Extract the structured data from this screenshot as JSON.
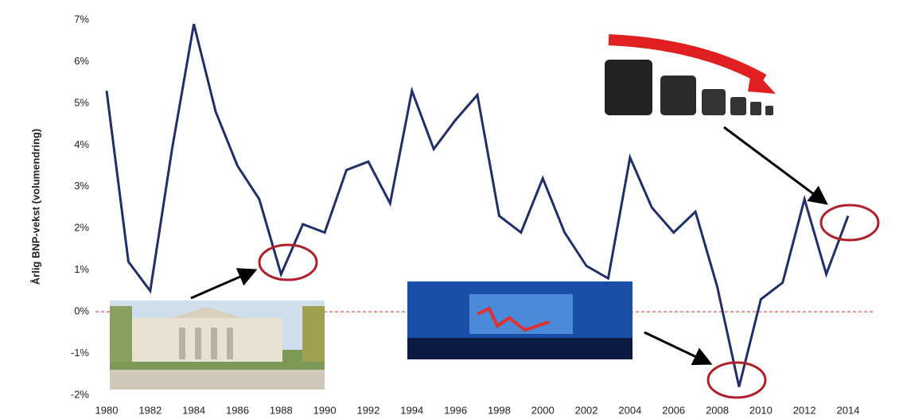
{
  "chart_data": {
    "type": "line",
    "y_label": "Årlig BNP-vekst (volumendring)",
    "x": [
      1980,
      1981,
      1982,
      1983,
      1984,
      1985,
      1986,
      1987,
      1988,
      1989,
      1990,
      1991,
      1992,
      1993,
      1994,
      1995,
      1996,
      1997,
      1998,
      1999,
      2000,
      2001,
      2002,
      2003,
      2004,
      2005,
      2006,
      2007,
      2008,
      2009,
      2010,
      2011,
      2012,
      2013,
      2014
    ],
    "values": [
      5.3,
      1.2,
      0.5,
      3.9,
      6.9,
      4.8,
      3.5,
      2.7,
      0.9,
      2.1,
      1.9,
      3.4,
      3.6,
      2.6,
      5.3,
      3.9,
      4.6,
      5.2,
      2.3,
      1.9,
      3.2,
      1.9,
      1.1,
      0.8,
      3.7,
      2.5,
      1.9,
      2.4,
      0.6,
      -1.8,
      0.3,
      0.7,
      2.7,
      0.9,
      2.3
    ],
    "color": "#1f2f6b",
    "xlim": [
      1980,
      2014
    ],
    "xticks": [
      1980,
      1982,
      1984,
      1986,
      1988,
      1990,
      1992,
      1994,
      1996,
      1998,
      2000,
      2002,
      2004,
      2006,
      2008,
      2010,
      2012,
      2014
    ],
    "ylim": [
      -2,
      7
    ],
    "yticks": [
      {
        "value": -2,
        "label": "-2%"
      },
      {
        "value": -1,
        "label": "-1%"
      },
      {
        "value": 0,
        "label": "0%"
      },
      {
        "value": 1,
        "label": "1%"
      },
      {
        "value": 2,
        "label": "2%"
      },
      {
        "value": 3,
        "label": "3%"
      },
      {
        "value": 4,
        "label": "4%"
      },
      {
        "value": 5,
        "label": "5%"
      },
      {
        "value": 6,
        "label": "6%"
      },
      {
        "value": 7,
        "label": "7%"
      }
    ],
    "zero_line_color": "#e05050"
  }
}
